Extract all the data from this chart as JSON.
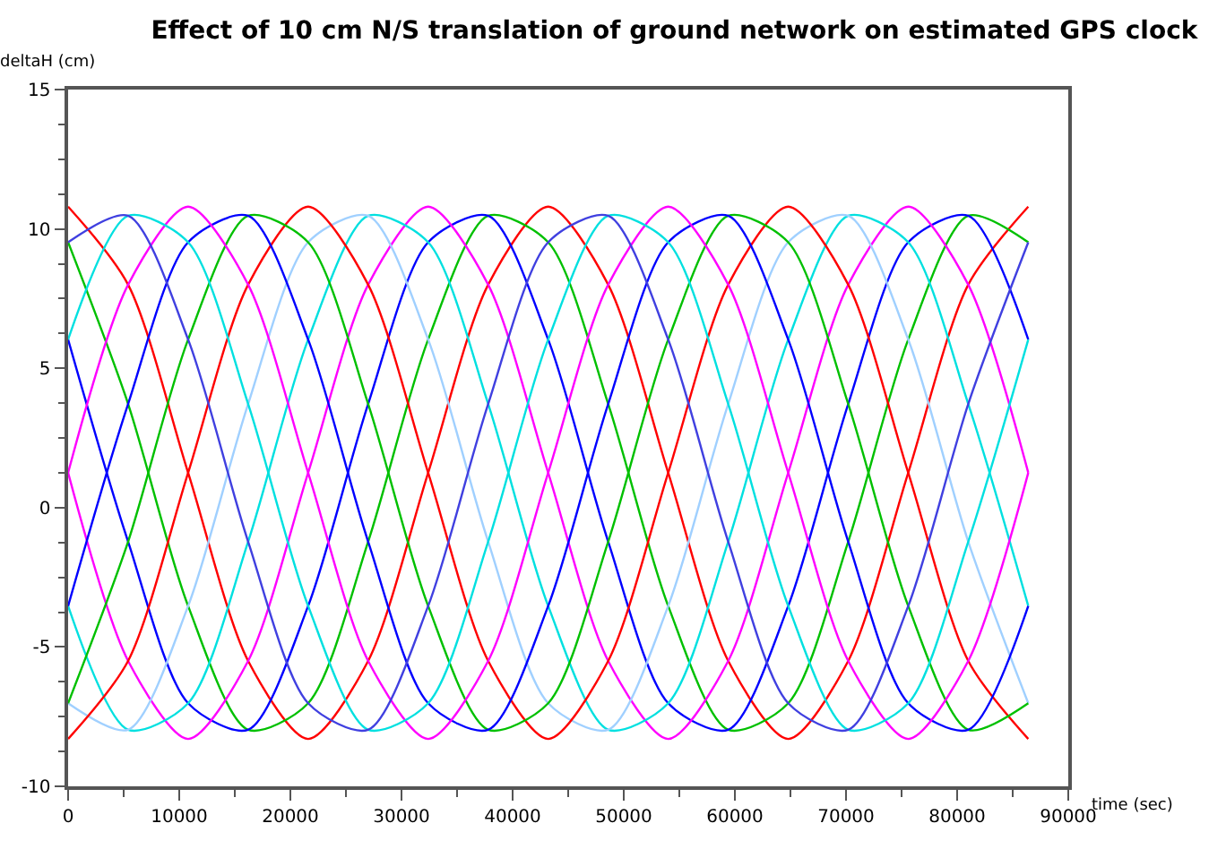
{
  "chart_data": {
    "type": "line",
    "title": "Effect of 10 cm N/S translation of ground network on estimated GPS clock",
    "xlabel": "time (sec)",
    "ylabel": "deltaH (cm)",
    "x": [
      0,
      5400,
      10800,
      16200,
      21600,
      27000,
      32400,
      37800,
      43200,
      48600,
      54000,
      59400,
      64800,
      70200,
      75600,
      81000,
      86400
    ],
    "series": [
      {
        "color": "#ff0000",
        "values": [
          10.8,
          8.0,
          1.25,
          -5.5,
          -8.3,
          -5.5,
          1.25,
          8.0,
          10.8,
          8.0,
          1.25,
          -5.5,
          -8.3,
          -5.5,
          1.25,
          8.0,
          10.8
        ]
      },
      {
        "color": "#00c000",
        "values": [
          9.52,
          3.72,
          -3.53,
          -7.97,
          -7.02,
          -1.22,
          6.03,
          10.47,
          9.52,
          3.72,
          -3.53,
          -7.97,
          -7.02,
          -1.22,
          6.03,
          10.47,
          9.52
        ]
      },
      {
        "color": "#0000ff",
        "values": [
          6.03,
          -1.22,
          -7.02,
          -7.97,
          -3.53,
          3.72,
          9.52,
          10.47,
          6.03,
          -1.22,
          -7.02,
          -7.97,
          -3.53,
          3.72,
          9.52,
          10.47,
          6.03
        ]
      },
      {
        "color": "#ff00ff",
        "values": [
          1.25,
          -5.5,
          -8.3,
          -5.5,
          1.25,
          8.0,
          10.8,
          8.0,
          1.25,
          -5.5,
          -8.3,
          -5.5,
          1.25,
          8.0,
          10.8,
          8.0,
          1.25
        ]
      },
      {
        "color": "#00e0e0",
        "values": [
          -3.53,
          -7.97,
          -7.02,
          -1.22,
          6.03,
          10.47,
          9.52,
          3.72,
          -3.53,
          -7.97,
          -7.02,
          -1.22,
          6.03,
          10.47,
          9.52,
          3.72,
          -3.53
        ]
      },
      {
        "color": "#a0d0ff",
        "values": [
          -7.02,
          -7.97,
          -3.53,
          3.72,
          9.52,
          10.47,
          6.03,
          -1.22,
          -7.02,
          -7.97,
          -3.53,
          3.72,
          9.52,
          10.47,
          6.03,
          -1.22,
          -7.02
        ]
      },
      {
        "color": "#ff0000",
        "values": [
          -8.3,
          -5.5,
          1.25,
          8.0,
          10.8,
          8.0,
          1.25,
          -5.5,
          -8.3,
          -5.5,
          1.25,
          8.0,
          10.8,
          8.0,
          1.25,
          -5.5,
          -8.3
        ]
      },
      {
        "color": "#00c000",
        "values": [
          -7.02,
          -1.22,
          6.03,
          10.47,
          9.52,
          3.72,
          -3.53,
          -7.97,
          -7.02,
          -1.22,
          6.03,
          10.47,
          9.52,
          3.72,
          -3.53,
          -7.97,
          -7.02
        ]
      },
      {
        "color": "#0000ff",
        "values": [
          -3.53,
          3.72,
          9.52,
          10.47,
          6.03,
          -1.22,
          -7.02,
          -7.97,
          -3.53,
          3.72,
          9.52,
          10.47,
          6.03,
          -1.22,
          -7.02,
          -7.97,
          -3.53
        ]
      },
      {
        "color": "#ff00ff",
        "values": [
          1.25,
          8.0,
          10.8,
          8.0,
          1.25,
          -5.5,
          -8.3,
          -5.5,
          1.25,
          8.0,
          10.8,
          8.0,
          1.25,
          -5.5,
          -8.3,
          -5.5,
          1.25
        ]
      },
      {
        "color": "#00e0e0",
        "values": [
          6.03,
          10.47,
          9.52,
          3.72,
          -3.53,
          -7.97,
          -7.02,
          -1.22,
          6.03,
          10.47,
          9.52,
          3.72,
          -3.53,
          -7.97,
          -7.02,
          -1.22,
          6.03
        ]
      },
      {
        "color": "#4040e0",
        "values": [
          9.52,
          10.47,
          6.03,
          -1.22,
          -7.02,
          -7.97,
          -3.53,
          3.72,
          9.52,
          10.47,
          6.03,
          -1.22,
          -7.02,
          -7.97,
          -3.53,
          3.72,
          9.52
        ]
      }
    ],
    "xlim": [
      0,
      90000
    ],
    "xticks": [
      0,
      10000,
      20000,
      30000,
      40000,
      50000,
      60000,
      70000,
      80000,
      90000
    ],
    "ylim": [
      -10,
      15
    ],
    "yticks": [
      -10,
      -5,
      0,
      5,
      10,
      15
    ]
  }
}
